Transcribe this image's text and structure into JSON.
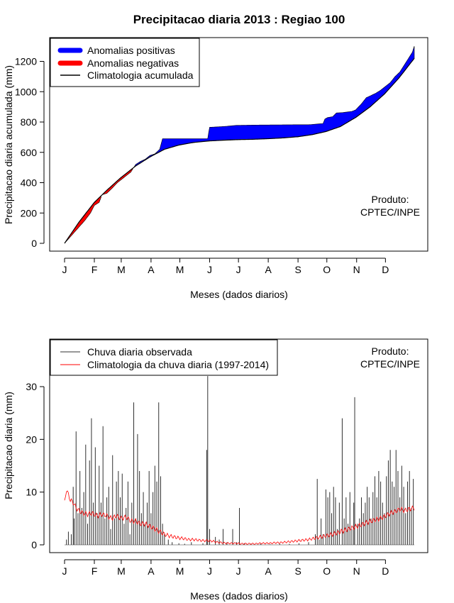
{
  "title": "Precipitacao diaria 2013 : Regiao 100",
  "months": [
    "J",
    "F",
    "M",
    "A",
    "M",
    "J",
    "J",
    "A",
    "S",
    "O",
    "N",
    "D"
  ],
  "credit": [
    "Produto:",
    "CPTEC/INPE"
  ],
  "colors": {
    "positive": "#0000ff",
    "negative": "#ff0000",
    "climatology_line": "#000000",
    "observed": "#303030",
    "daily_climatology": "#ff0000"
  },
  "chart_data": [
    {
      "type": "area",
      "name": "cumulative",
      "xlabel": "Meses (dados diarios)",
      "ylabel": "Precipitacao diaria acumulada (mm)",
      "xlim": [
        1,
        365
      ],
      "ylim": [
        0,
        1300
      ],
      "yticks": [
        0,
        200,
        400,
        600,
        800,
        1000,
        1200
      ],
      "legend": {
        "position": "top-left",
        "entries": [
          "Anomalias positivas",
          "Anomalias negativas",
          "Climatologia acumulada"
        ]
      },
      "climatology_points": [
        [
          1,
          0
        ],
        [
          16,
          140
        ],
        [
          32,
          270
        ],
        [
          45,
          350
        ],
        [
          59,
          430
        ],
        [
          75,
          510
        ],
        [
          90,
          570
        ],
        [
          105,
          620
        ],
        [
          120,
          648
        ],
        [
          135,
          665
        ],
        [
          151,
          675
        ],
        [
          166,
          680
        ],
        [
          182,
          684
        ],
        [
          197,
          686
        ],
        [
          213,
          690
        ],
        [
          228,
          695
        ],
        [
          244,
          703
        ],
        [
          259,
          717
        ],
        [
          273,
          737
        ],
        [
          288,
          770
        ],
        [
          304,
          830
        ],
        [
          319,
          900
        ],
        [
          334,
          985
        ],
        [
          349,
          1090
        ],
        [
          365,
          1220
        ]
      ],
      "observed_points": [
        [
          1,
          0
        ],
        [
          8,
          50
        ],
        [
          15,
          100
        ],
        [
          22,
          150
        ],
        [
          28,
          200
        ],
        [
          32,
          250
        ],
        [
          37,
          270
        ],
        [
          40,
          320
        ],
        [
          45,
          330
        ],
        [
          50,
          360
        ],
        [
          56,
          400
        ],
        [
          60,
          420
        ],
        [
          66,
          450
        ],
        [
          70,
          470
        ],
        [
          75,
          520
        ],
        [
          80,
          540
        ],
        [
          85,
          555
        ],
        [
          90,
          580
        ],
        [
          95,
          590
        ],
        [
          100,
          620
        ],
        [
          103,
          690
        ],
        [
          110,
          690
        ],
        [
          115,
          690
        ],
        [
          120,
          690
        ],
        [
          125,
          690
        ],
        [
          130,
          690
        ],
        [
          140,
          690
        ],
        [
          150,
          690
        ],
        [
          150,
          690
        ],
        [
          151,
          730
        ],
        [
          151,
          765
        ],
        [
          160,
          768
        ],
        [
          170,
          772
        ],
        [
          180,
          778
        ],
        [
          200,
          780
        ],
        [
          220,
          781
        ],
        [
          240,
          782
        ],
        [
          255,
          782
        ],
        [
          270,
          790
        ],
        [
          272,
          820
        ],
        [
          275,
          830
        ],
        [
          280,
          835
        ],
        [
          284,
          860
        ],
        [
          290,
          862
        ],
        [
          300,
          870
        ],
        [
          304,
          880
        ],
        [
          310,
          920
        ],
        [
          315,
          960
        ],
        [
          325,
          990
        ],
        [
          330,
          1010
        ],
        [
          340,
          1060
        ],
        [
          345,
          1100
        ],
        [
          350,
          1130
        ],
        [
          355,
          1180
        ],
        [
          360,
          1230
        ],
        [
          363,
          1260
        ],
        [
          365,
          1300
        ]
      ]
    },
    {
      "type": "bar",
      "name": "daily",
      "xlabel": "Meses (dados diarios)",
      "ylabel": "Precipitacao diaria (mm)",
      "xlim": [
        1,
        365
      ],
      "ylim": [
        0,
        32
      ],
      "yticks": [
        0,
        10,
        20,
        30
      ],
      "legend": {
        "position": "top-left",
        "entries": [
          "Chuva diaria observada",
          "Climatologia da chuva diaria (1997-2014)"
        ]
      },
      "observed_peaks": [
        [
          3,
          1
        ],
        [
          5,
          2.5
        ],
        [
          8,
          2
        ],
        [
          10,
          11
        ],
        [
          11,
          5
        ],
        [
          13,
          21.5
        ],
        [
          15,
          6
        ],
        [
          17,
          14
        ],
        [
          19,
          7
        ],
        [
          21,
          10
        ],
        [
          23,
          19
        ],
        [
          25,
          4
        ],
        [
          27,
          16
        ],
        [
          29,
          24
        ],
        [
          31,
          8
        ],
        [
          33,
          18.5
        ],
        [
          35,
          6
        ],
        [
          37,
          15
        ],
        [
          39,
          8
        ],
        [
          41,
          22.5
        ],
        [
          43,
          5
        ],
        [
          45,
          9
        ],
        [
          47,
          11
        ],
        [
          49,
          3
        ],
        [
          51,
          17
        ],
        [
          53,
          5
        ],
        [
          55,
          12
        ],
        [
          57,
          14
        ],
        [
          59,
          9
        ],
        [
          61,
          13.5
        ],
        [
          63,
          4
        ],
        [
          65,
          7
        ],
        [
          67,
          12
        ],
        [
          69,
          2
        ],
        [
          71,
          8
        ],
        [
          73,
          27
        ],
        [
          75,
          5
        ],
        [
          77,
          21
        ],
        [
          79,
          14
        ],
        [
          81,
          6
        ],
        [
          83,
          10
        ],
        [
          85,
          4
        ],
        [
          87,
          8
        ],
        [
          89,
          14
        ],
        [
          91,
          6
        ],
        [
          93,
          10
        ],
        [
          95,
          15
        ],
        [
          97,
          12
        ],
        [
          99,
          27
        ],
        [
          101,
          13
        ],
        [
          103,
          4
        ],
        [
          105,
          2
        ],
        [
          109,
          1
        ],
        [
          113,
          0.5
        ],
        [
          120,
          0.3
        ],
        [
          126,
          0.2
        ],
        [
          133,
          0.5
        ],
        [
          145,
          0.3
        ],
        [
          149,
          18
        ],
        [
          150,
          32
        ],
        [
          152,
          3
        ],
        [
          158,
          1.5
        ],
        [
          162,
          1
        ],
        [
          166,
          3
        ],
        [
          170,
          0.5
        ],
        [
          176,
          3
        ],
        [
          180,
          0.5
        ],
        [
          183,
          7
        ],
        [
          188,
          0.3
        ],
        [
          195,
          0.2
        ],
        [
          205,
          0.2
        ],
        [
          215,
          0.1
        ],
        [
          225,
          0.2
        ],
        [
          235,
          0.2
        ],
        [
          245,
          0.3
        ],
        [
          255,
          0.5
        ],
        [
          262,
          2
        ],
        [
          264,
          12.5
        ],
        [
          266,
          1
        ],
        [
          268,
          5
        ],
        [
          270,
          2
        ],
        [
          273,
          10.5
        ],
        [
          275,
          9
        ],
        [
          277,
          10
        ],
        [
          279,
          6
        ],
        [
          281,
          11
        ],
        [
          283,
          9
        ],
        [
          285,
          3
        ],
        [
          287,
          8
        ],
        [
          290,
          24
        ],
        [
          292,
          5
        ],
        [
          294,
          9
        ],
        [
          296,
          4
        ],
        [
          298,
          10
        ],
        [
          300,
          3
        ],
        [
          302,
          8
        ],
        [
          303,
          28
        ],
        [
          306,
          4
        ],
        [
          308,
          5
        ],
        [
          310,
          9
        ],
        [
          312,
          6
        ],
        [
          314,
          8
        ],
        [
          316,
          11
        ],
        [
          318,
          9
        ],
        [
          320,
          5
        ],
        [
          322,
          10
        ],
        [
          324,
          13
        ],
        [
          326,
          9
        ],
        [
          328,
          14
        ],
        [
          330,
          12
        ],
        [
          332,
          8
        ],
        [
          334,
          6
        ],
        [
          336,
          13
        ],
        [
          338,
          16
        ],
        [
          340,
          18
        ],
        [
          342,
          12
        ],
        [
          344,
          11
        ],
        [
          346,
          18
        ],
        [
          348,
          14
        ],
        [
          350,
          9
        ],
        [
          352,
          15
        ],
        [
          354,
          11
        ],
        [
          356,
          6
        ],
        [
          358,
          12
        ],
        [
          360,
          14
        ],
        [
          362,
          7
        ],
        [
          364,
          12.5
        ]
      ],
      "climatology_points": [
        [
          1,
          8
        ],
        [
          3,
          10.5
        ],
        [
          5,
          9.5
        ],
        [
          7,
          8.5
        ],
        [
          10,
          8
        ],
        [
          13,
          7
        ],
        [
          16,
          6.5
        ],
        [
          20,
          6
        ],
        [
          25,
          5.8
        ],
        [
          30,
          6
        ],
        [
          35,
          5.5
        ],
        [
          40,
          5.8
        ],
        [
          45,
          5.5
        ],
        [
          50,
          5
        ],
        [
          55,
          5.5
        ],
        [
          60,
          5
        ],
        [
          65,
          5.3
        ],
        [
          70,
          4.5
        ],
        [
          75,
          4.5
        ],
        [
          80,
          4
        ],
        [
          85,
          4
        ],
        [
          90,
          3.5
        ],
        [
          95,
          3
        ],
        [
          100,
          2.5
        ],
        [
          105,
          2
        ],
        [
          110,
          1.7
        ],
        [
          115,
          1.5
        ],
        [
          120,
          1.3
        ],
        [
          125,
          1.2
        ],
        [
          130,
          1
        ],
        [
          135,
          1
        ],
        [
          140,
          0.9
        ],
        [
          145,
          0.8
        ],
        [
          150,
          0.8
        ],
        [
          155,
          0.7
        ],
        [
          160,
          0.5
        ],
        [
          165,
          0.4
        ],
        [
          170,
          0.3
        ],
        [
          175,
          0.3
        ],
        [
          180,
          0.3
        ],
        [
          185,
          0.2
        ],
        [
          190,
          0.2
        ],
        [
          195,
          0.2
        ],
        [
          200,
          0.2
        ],
        [
          205,
          0.3
        ],
        [
          210,
          0.3
        ],
        [
          215,
          0.3
        ],
        [
          220,
          0.4
        ],
        [
          225,
          0.4
        ],
        [
          230,
          0.5
        ],
        [
          235,
          0.6
        ],
        [
          240,
          0.7
        ],
        [
          245,
          0.8
        ],
        [
          250,
          0.9
        ],
        [
          255,
          1
        ],
        [
          260,
          1.2
        ],
        [
          265,
          1.4
        ],
        [
          270,
          1.6
        ],
        [
          275,
          1.8
        ],
        [
          280,
          2
        ],
        [
          285,
          2.3
        ],
        [
          290,
          2.6
        ],
        [
          295,
          2.9
        ],
        [
          300,
          3.2
        ],
        [
          305,
          3.5
        ],
        [
          310,
          3.8
        ],
        [
          315,
          4.2
        ],
        [
          320,
          4.5
        ],
        [
          325,
          4.8
        ],
        [
          330,
          5
        ],
        [
          335,
          5.5
        ],
        [
          340,
          6
        ],
        [
          345,
          6.3
        ],
        [
          350,
          6.8
        ],
        [
          355,
          6.5
        ],
        [
          360,
          6.8
        ],
        [
          365,
          7
        ]
      ]
    }
  ]
}
